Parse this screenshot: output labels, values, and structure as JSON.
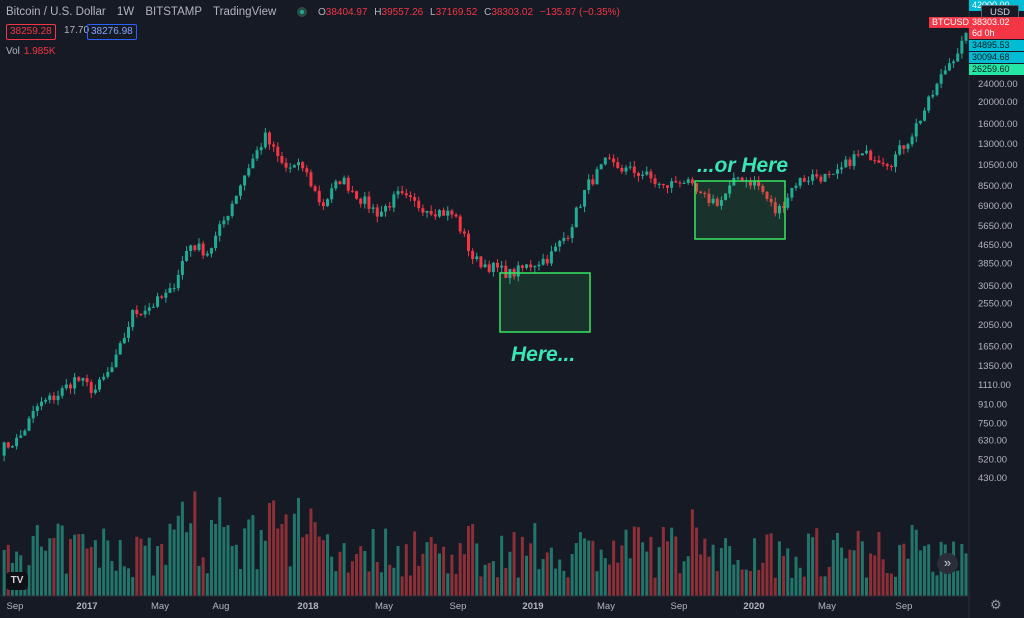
{
  "header": {
    "symbol": "Bitcoin / U.S. Dollar",
    "interval": "1W",
    "exchange": "BITSTAMP",
    "source": "TradingView",
    "o_key": "O",
    "o_val": "38404.97",
    "h_key": "H",
    "h_val": "39557.26",
    "l_key": "L",
    "l_val": "37169.52",
    "c_key": "C",
    "c_val": "38303.02",
    "change": "−135.87 (−0.35%)",
    "sell_price": "38259.28",
    "spread": "17.70",
    "buy_price": "38276.98",
    "vol_label": "Vol",
    "vol_value": "1.985K"
  },
  "price_axis": {
    "currency": "USD",
    "ticks": [
      "24000.00",
      "20000.00",
      "16000.00",
      "13000.00",
      "10500.00",
      "8500.00",
      "6900.00",
      "5650.00",
      "4650.00",
      "3850.00",
      "3050.00",
      "2550.00",
      "2050.00",
      "1650.00",
      "1350.00",
      "1110.00",
      "910.00",
      "750.00",
      "630.00",
      "520.00",
      "430.00"
    ],
    "top_label": "42000.00",
    "last_symbol": "BTCUSD",
    "last_price": "38303.02",
    "countdown": "6d 0h",
    "labels": [
      {
        "text": "34895.53",
        "color": "#00bcd4"
      },
      {
        "text": "30094.68",
        "color": "#00bcd4"
      },
      {
        "text": "26259.60",
        "color": "#26e6a6"
      }
    ]
  },
  "time_axis": [
    "Sep",
    "2017",
    "May",
    "Aug",
    "2018",
    "May",
    "Sep",
    "2019",
    "May",
    "Sep",
    "2020",
    "May",
    "Sep"
  ],
  "annotations": {
    "here": "Here...",
    "or_here": "...or Here"
  },
  "logo_text": "TV",
  "colors": {
    "up": "#22ab94",
    "down": "#f23645",
    "up_vol": "#22756a",
    "down_vol": "#8c2f37",
    "box": "#39e563"
  },
  "chart_data": {
    "type": "candlestick",
    "title": "Bitcoin / U.S. Dollar, 1W, BITSTAMP",
    "y_scale": "log",
    "series_close": [
      [
        "Aug 2016",
        575
      ],
      [
        "Oct 2016",
        640
      ],
      [
        "Dec 2016",
        900
      ],
      [
        "Jan 2017",
        1000
      ],
      [
        "Feb 2017",
        1190
      ],
      [
        "Mar 2017",
        1050
      ],
      [
        "Apr 2017",
        1350
      ],
      [
        "May 2017",
        2300
      ],
      [
        "Jun 2017",
        2500
      ],
      [
        "Jul 2017",
        2870
      ],
      [
        "Aug 2017",
        4700
      ],
      [
        "Sep 2017",
        4300
      ],
      [
        "Oct 2017",
        6400
      ],
      [
        "Nov 2017",
        9900
      ],
      [
        "Dec 2017",
        14000
      ],
      [
        "Jan 2018",
        10200
      ],
      [
        "Feb 2018",
        10300
      ],
      [
        "Mar 2018",
        6900
      ],
      [
        "Apr 2018",
        9200
      ],
      [
        "May 2018",
        7500
      ],
      [
        "Jun 2018",
        6400
      ],
      [
        "Jul 2018",
        7700
      ],
      [
        "Aug 2018",
        7000
      ],
      [
        "Sep 2018",
        6600
      ],
      [
        "Oct 2018",
        6300
      ],
      [
        "Nov 2018",
        4000
      ],
      [
        "Dec 2018",
        3700
      ],
      [
        "Jan 2019",
        3450
      ],
      [
        "Feb 2019",
        3800
      ],
      [
        "Mar 2019",
        4100
      ],
      [
        "Apr 2019",
        5300
      ],
      [
        "May 2019",
        8500
      ],
      [
        "Jun 2019",
        10800
      ],
      [
        "Jul 2019",
        10000
      ],
      [
        "Aug 2019",
        9600
      ],
      [
        "Sep 2019",
        8300
      ],
      [
        "Oct 2019",
        9150
      ],
      [
        "Nov 2019",
        7550
      ],
      [
        "Dec 2019",
        7200
      ],
      [
        "Jan 2020",
        9350
      ],
      [
        "Feb 2020",
        8600
      ],
      [
        "Mar 2020",
        6400
      ],
      [
        "Apr 2020",
        8800
      ],
      [
        "May 2020",
        9450
      ],
      [
        "Jun 2020",
        9150
      ],
      [
        "Jul 2020",
        11350
      ],
      [
        "Aug 2020",
        11700
      ],
      [
        "Sep 2020",
        10800
      ],
      [
        "Oct 2020",
        13800
      ],
      [
        "Nov 2020",
        19700
      ],
      [
        "Dec 2020",
        29000
      ],
      [
        "Jan 2021",
        38303
      ]
    ]
  }
}
